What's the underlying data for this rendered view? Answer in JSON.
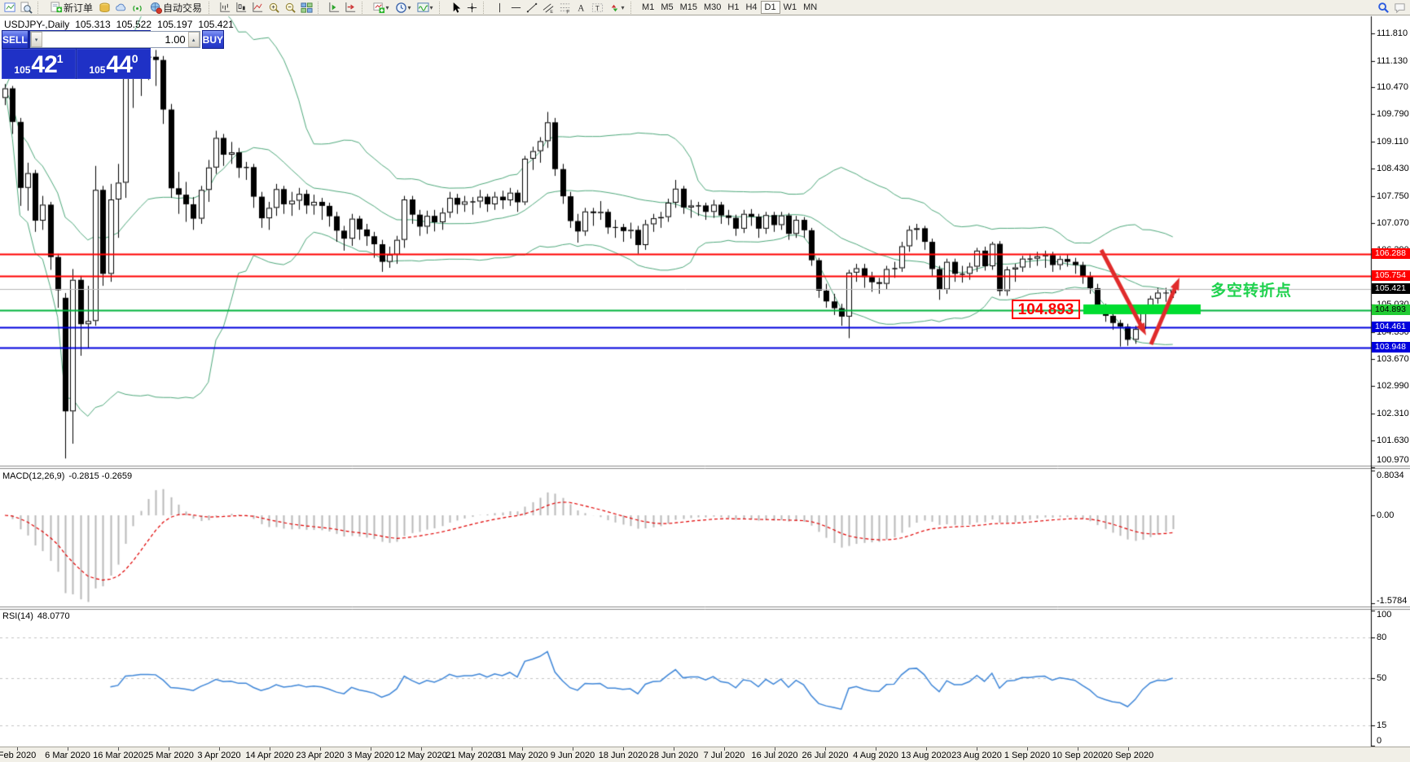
{
  "toolbar": {
    "items": [
      {
        "type": "icon",
        "name": "chart-window-icon"
      },
      {
        "type": "icon",
        "name": "market-watch-icon"
      },
      {
        "type": "sep"
      },
      {
        "type": "button",
        "name": "new-order-button",
        "icon": "new-order-icon",
        "label": "新订单"
      },
      {
        "type": "icon",
        "name": "history-center-icon"
      },
      {
        "type": "icon",
        "name": "cloud-icon"
      },
      {
        "type": "icon",
        "name": "signals-icon"
      },
      {
        "type": "button",
        "name": "auto-trading-button",
        "icon": "auto-trading-icon",
        "label": "自动交易"
      },
      {
        "type": "sep"
      },
      {
        "type": "icon",
        "name": "bar-chart-mode-icon"
      },
      {
        "type": "icon",
        "name": "candle-chart-mode-icon"
      },
      {
        "type": "icon",
        "name": "line-chart-mode-icon"
      },
      {
        "type": "icon",
        "name": "zoom-in-icon"
      },
      {
        "type": "icon",
        "name": "zoom-out-icon"
      },
      {
        "type": "icon",
        "name": "tile-windows-icon"
      },
      {
        "type": "sep"
      },
      {
        "type": "icon",
        "name": "auto-scroll-icon"
      },
      {
        "type": "icon",
        "name": "chart-shift-icon"
      },
      {
        "type": "sep"
      },
      {
        "type": "dropdown",
        "name": "new-chart-icon"
      },
      {
        "type": "dropdown",
        "name": "periods-icon"
      },
      {
        "type": "dropdown",
        "name": "indicators-icon"
      },
      {
        "type": "sep"
      },
      {
        "type": "icon",
        "name": "cursor-icon"
      },
      {
        "type": "icon",
        "name": "crosshair-icon"
      },
      {
        "type": "sep"
      },
      {
        "type": "icon",
        "name": "vertical-line-icon"
      },
      {
        "type": "icon",
        "name": "horizontal-line-icon"
      },
      {
        "type": "icon",
        "name": "trendline-icon"
      },
      {
        "type": "icon",
        "name": "equidistant-channel-icon"
      },
      {
        "type": "icon",
        "name": "fibonacci-icon"
      },
      {
        "type": "icon",
        "name": "text-icon"
      },
      {
        "type": "icon",
        "name": "text-label-icon"
      },
      {
        "type": "dropdown",
        "name": "arrows-icon"
      },
      {
        "type": "sep"
      }
    ],
    "timeframes": [
      "M1",
      "M5",
      "M15",
      "M30",
      "H1",
      "H4",
      "D1",
      "W1",
      "MN"
    ],
    "active_timeframe": "D1",
    "right_icons": [
      "search-icon",
      "chat-icon"
    ]
  },
  "symbol_header": {
    "text": "USDJPY-,Daily",
    "open": "105.313",
    "high": "105.522",
    "low": "105.197",
    "close": "105.421"
  },
  "trade_panel": {
    "sell_label": "SELL",
    "buy_label": "BUY",
    "volume": "1.00",
    "sell_price": {
      "prefix": "105",
      "big": "42",
      "sup": "1"
    },
    "buy_price": {
      "prefix": "105",
      "big": "44",
      "sup": "0"
    }
  },
  "main_axis_ticks": [
    "111.810",
    "111.130",
    "110.470",
    "109.790",
    "109.110",
    "108.430",
    "107.750",
    "107.070",
    "106.390",
    "105.710",
    "105.030",
    "104.350",
    "103.670",
    "102.990",
    "102.310",
    "101.630",
    "100.970"
  ],
  "hlines": [
    {
      "price": 106.288,
      "label": "106.288",
      "color": "#ff0000",
      "lw": 2,
      "tag_bg": "#ff0000",
      "tag_fg": "#ffffff"
    },
    {
      "price": 105.754,
      "label": "105.754",
      "color": "#ff0000",
      "lw": 2,
      "tag_bg": "#ff0000",
      "tag_fg": "#ffffff"
    },
    {
      "price": 105.421,
      "label": "105.421",
      "color": "#b8b8b8",
      "lw": 1,
      "tag_bg": "#000000",
      "tag_fg": "#ffffff"
    },
    {
      "price": 104.893,
      "label": "104.893",
      "color": "#00b33c",
      "lw": 2,
      "tag_bg": "#22cc33",
      "tag_fg": "#000000"
    },
    {
      "price": 104.461,
      "label": "104.461",
      "color": "#0000dd",
      "lw": 2,
      "tag_bg": "#0000dd",
      "tag_fg": "#ffffff"
    },
    {
      "price": 103.948,
      "label": "103.948",
      "color": "#0000dd",
      "lw": 2,
      "tag_bg": "#0000dd",
      "tag_fg": "#ffffff"
    }
  ],
  "macd_panel": {
    "label": "MACD(12,26,9)",
    "value_text": "-0.2815 -0.2659",
    "ticks": [
      {
        "v": 0.8034,
        "label": "0.8034"
      },
      {
        "v": 0,
        "label": "0.00"
      },
      {
        "v": -1.5784,
        "label": "-1.5784"
      }
    ]
  },
  "rsi_panel": {
    "label": "RSI(14)",
    "value_text": "48.0770",
    "ticks": [
      {
        "v": 100,
        "label": "100"
      },
      {
        "v": 80,
        "label": "80"
      },
      {
        "v": 50,
        "label": "50"
      },
      {
        "v": 15,
        "label": "15"
      },
      {
        "v": 0,
        "label": "0"
      }
    ],
    "levels": [
      80,
      50,
      15
    ]
  },
  "annotations": {
    "price_box": "104.893",
    "turning_text": "多空转折点",
    "colors": {
      "arrow": "#e02b2b",
      "band": "#00dd30",
      "text": "#1fd24e",
      "box": "#ff0000"
    }
  },
  "chart_data": {
    "type": "candlestick",
    "symbol": "USDJPY",
    "timeframe": "Daily",
    "title": "USDJPY-,Daily",
    "ohlc_display": [
      105.313,
      105.522,
      105.197,
      105.421
    ],
    "ylim": [
      101.02,
      112.24
    ],
    "grid": false,
    "date_labels": [
      "Feb 2020",
      "6 Mar 2020",
      "16 Mar 2020",
      "25 Mar 2020",
      "3 Apr 2020",
      "14 Apr 2020",
      "23 Apr 2020",
      "3 May 2020",
      "12 May 2020",
      "21 May 2020",
      "31 May 2020",
      "9 Jun 2020",
      "18 Jun 2020",
      "28 Jun 2020",
      "7 Jul 2020",
      "16 Jul 2020",
      "26 Jul 2020",
      "4 Aug 2020",
      "13 Aug 2020",
      "23 Aug 2020",
      "1 Sep 2020",
      "10 Sep 2020",
      "20 Sep 2020"
    ],
    "indicators": {
      "bollinger": {
        "period": 20,
        "deviation": 2,
        "color": "#4fa97c"
      },
      "macd": {
        "fast": 12,
        "slow": 26,
        "signal": 9,
        "current_main": -0.2815,
        "current_signal": -0.2659,
        "range": [
          -1.5784,
          0.8034
        ],
        "histogram_color": "#b8b8b8",
        "signal_color": "#e00000"
      },
      "rsi": {
        "period": 14,
        "current": 48.077,
        "range": [
          0,
          100
        ],
        "levels": [
          80,
          50,
          15
        ],
        "color": "#3e86d8"
      }
    },
    "levels": {
      "resistance": [
        106.288,
        105.754
      ],
      "pivot_zone": 104.893,
      "support": [
        104.461,
        103.948
      ],
      "bid": 105.421
    },
    "candles": [
      [
        110.2,
        110.55,
        110.02,
        110.44
      ],
      [
        110.44,
        110.5,
        109.3,
        109.6
      ],
      [
        109.6,
        109.7,
        107.5,
        107.95
      ],
      [
        107.95,
        108.58,
        107.38,
        108.32
      ],
      [
        108.32,
        108.4,
        106.85,
        107.13
      ],
      [
        107.13,
        107.75,
        106.9,
        107.53
      ],
      [
        107.53,
        107.6,
        105.9,
        106.22
      ],
      [
        106.22,
        106.3,
        104.95,
        105.39
      ],
      [
        105.2,
        105.32,
        101.18,
        102.36
      ],
      [
        102.36,
        105.92,
        101.55,
        105.65
      ],
      [
        105.65,
        105.75,
        103.75,
        104.54
      ],
      [
        104.54,
        105.5,
        103.95,
        104.62
      ],
      [
        104.62,
        108.5,
        104.5,
        107.9
      ],
      [
        107.9,
        108.0,
        105.5,
        105.8
      ],
      [
        105.8,
        108.05,
        105.6,
        107.66
      ],
      [
        107.66,
        108.55,
        106.7,
        108.08
      ],
      [
        108.08,
        110.95,
        107.7,
        110.71
      ],
      [
        110.71,
        111.5,
        109.95,
        110.93
      ],
      [
        110.93,
        111.59,
        110.25,
        111.22
      ],
      [
        111.22,
        111.71,
        110.65,
        111.23
      ],
      [
        111.23,
        111.4,
        110.5,
        111.15
      ],
      [
        111.15,
        111.25,
        109.55,
        109.91
      ],
      [
        109.91,
        110.05,
        107.7,
        107.94
      ],
      [
        107.94,
        108.35,
        107.3,
        107.78
      ],
      [
        107.78,
        108.1,
        107.1,
        107.54
      ],
      [
        107.54,
        107.72,
        106.9,
        107.18
      ],
      [
        107.18,
        108.0,
        107.05,
        107.9
      ],
      [
        107.9,
        108.65,
        107.6,
        108.46
      ],
      [
        108.46,
        109.38,
        108.3,
        109.2
      ],
      [
        109.2,
        109.3,
        108.5,
        108.78
      ],
      [
        108.78,
        109.1,
        108.55,
        108.84
      ],
      [
        108.84,
        108.95,
        108.2,
        108.45
      ],
      [
        108.45,
        108.6,
        108.15,
        108.47
      ],
      [
        108.47,
        108.55,
        107.45,
        107.73
      ],
      [
        107.73,
        107.85,
        106.95,
        107.19
      ],
      [
        107.19,
        107.6,
        106.9,
        107.45
      ],
      [
        107.45,
        108.05,
        107.25,
        107.92
      ],
      [
        107.92,
        108.0,
        107.3,
        107.54
      ],
      [
        107.54,
        107.85,
        107.25,
        107.63
      ],
      [
        107.63,
        107.95,
        107.4,
        107.8
      ],
      [
        107.8,
        107.9,
        107.3,
        107.51
      ],
      [
        107.51,
        107.78,
        107.28,
        107.6
      ],
      [
        107.6,
        107.7,
        107.15,
        107.5
      ],
      [
        107.5,
        107.58,
        106.98,
        107.24
      ],
      [
        107.24,
        107.35,
        106.6,
        106.88
      ],
      [
        106.88,
        107.0,
        106.38,
        106.68
      ],
      [
        106.68,
        107.3,
        106.5,
        107.18
      ],
      [
        107.18,
        107.25,
        106.65,
        106.91
      ],
      [
        106.91,
        107.05,
        106.5,
        106.74
      ],
      [
        106.74,
        106.85,
        106.2,
        106.54
      ],
      [
        106.54,
        106.65,
        105.85,
        106.1
      ],
      [
        106.1,
        106.48,
        105.95,
        106.28
      ],
      [
        106.28,
        106.75,
        106.05,
        106.65
      ],
      [
        106.65,
        107.75,
        106.45,
        107.66
      ],
      [
        107.66,
        107.75,
        107.05,
        107.28
      ],
      [
        107.28,
        107.4,
        106.75,
        106.98
      ],
      [
        106.98,
        107.38,
        106.8,
        107.25
      ],
      [
        107.25,
        107.4,
        106.86,
        107.09
      ],
      [
        107.09,
        107.45,
        106.9,
        107.33
      ],
      [
        107.33,
        107.85,
        107.2,
        107.7
      ],
      [
        107.7,
        107.8,
        107.3,
        107.53
      ],
      [
        107.53,
        107.75,
        107.35,
        107.61
      ],
      [
        107.61,
        107.72,
        107.28,
        107.61
      ],
      [
        107.61,
        107.9,
        107.45,
        107.73
      ],
      [
        107.73,
        107.8,
        107.35,
        107.54
      ],
      [
        107.54,
        107.85,
        107.4,
        107.73
      ],
      [
        107.73,
        107.88,
        107.42,
        107.64
      ],
      [
        107.64,
        107.95,
        107.5,
        107.83
      ],
      [
        107.83,
        107.9,
        107.35,
        107.59
      ],
      [
        107.59,
        108.75,
        107.52,
        108.68
      ],
      [
        108.68,
        108.98,
        108.4,
        108.87
      ],
      [
        108.87,
        109.22,
        108.58,
        109.12
      ],
      [
        109.12,
        109.85,
        108.95,
        109.59
      ],
      [
        109.59,
        109.7,
        108.25,
        108.42
      ],
      [
        108.42,
        108.55,
        107.55,
        107.74
      ],
      [
        107.74,
        107.85,
        106.95,
        107.12
      ],
      [
        107.12,
        107.3,
        106.58,
        106.86
      ],
      [
        106.86,
        107.45,
        106.75,
        107.36
      ],
      [
        107.36,
        107.45,
        107.0,
        107.32
      ],
      [
        107.32,
        107.62,
        107.15,
        107.35
      ],
      [
        107.35,
        107.42,
        106.8,
        106.96
      ],
      [
        106.96,
        107.15,
        106.7,
        106.97
      ],
      [
        106.97,
        107.05,
        106.6,
        106.87
      ],
      [
        106.87,
        107.08,
        106.68,
        106.9
      ],
      [
        106.9,
        107.0,
        106.3,
        106.52
      ],
      [
        106.52,
        107.15,
        106.4,
        107.04
      ],
      [
        107.04,
        107.3,
        106.85,
        107.19
      ],
      [
        107.19,
        107.35,
        106.95,
        107.22
      ],
      [
        107.22,
        107.68,
        107.1,
        107.58
      ],
      [
        107.58,
        108.15,
        107.45,
        107.93
      ],
      [
        107.93,
        108.0,
        107.3,
        107.46
      ],
      [
        107.46,
        107.65,
        107.2,
        107.51
      ],
      [
        107.51,
        107.6,
        107.25,
        107.51
      ],
      [
        107.51,
        107.58,
        107.15,
        107.35
      ],
      [
        107.35,
        107.65,
        107.2,
        107.53
      ],
      [
        107.53,
        107.6,
        107.05,
        107.26
      ],
      [
        107.26,
        107.4,
        107.02,
        107.2
      ],
      [
        107.2,
        107.28,
        106.75,
        106.93
      ],
      [
        106.93,
        107.4,
        106.82,
        107.3
      ],
      [
        107.3,
        107.42,
        107.0,
        107.23
      ],
      [
        107.23,
        107.3,
        106.7,
        106.93
      ],
      [
        106.93,
        107.35,
        106.8,
        107.27
      ],
      [
        107.27,
        107.35,
        106.85,
        107.02
      ],
      [
        107.02,
        107.35,
        106.9,
        107.26
      ],
      [
        107.26,
        107.32,
        106.65,
        106.8
      ],
      [
        106.8,
        107.25,
        106.7,
        107.15
      ],
      [
        107.15,
        107.22,
        106.7,
        106.89
      ],
      [
        106.89,
        106.95,
        106.0,
        106.14
      ],
      [
        106.14,
        106.2,
        105.2,
        105.38
      ],
      [
        105.38,
        105.55,
        104.95,
        105.11
      ],
      [
        105.11,
        105.3,
        104.77,
        104.94
      ],
      [
        104.94,
        105.05,
        104.5,
        104.73
      ],
      [
        104.73,
        105.9,
        104.19,
        105.83
      ],
      [
        105.83,
        106.05,
        105.6,
        105.94
      ],
      [
        105.94,
        106.05,
        105.45,
        105.72
      ],
      [
        105.72,
        105.85,
        105.35,
        105.59
      ],
      [
        105.59,
        105.7,
        105.3,
        105.55
      ],
      [
        105.55,
        106.0,
        105.4,
        105.92
      ],
      [
        105.92,
        106.1,
        105.7,
        105.94
      ],
      [
        105.94,
        106.6,
        105.85,
        106.49
      ],
      [
        106.49,
        107.0,
        106.35,
        106.9
      ],
      [
        106.9,
        107.05,
        106.65,
        106.94
      ],
      [
        106.94,
        107.0,
        106.4,
        106.6
      ],
      [
        106.6,
        106.68,
        105.75,
        105.92
      ],
      [
        105.92,
        106.0,
        105.15,
        105.41
      ],
      [
        105.41,
        106.18,
        105.3,
        106.1
      ],
      [
        106.1,
        106.18,
        105.6,
        105.8
      ],
      [
        105.8,
        106.0,
        105.58,
        105.8
      ],
      [
        105.8,
        106.08,
        105.65,
        105.98
      ],
      [
        105.98,
        106.45,
        105.85,
        106.38
      ],
      [
        106.38,
        106.48,
        105.88,
        105.99
      ],
      [
        105.99,
        106.6,
        105.9,
        106.55
      ],
      [
        106.55,
        106.62,
        105.25,
        105.37
      ],
      [
        105.37,
        105.98,
        105.25,
        105.91
      ],
      [
        105.91,
        106.05,
        105.6,
        105.96
      ],
      [
        105.96,
        106.25,
        105.85,
        106.18
      ],
      [
        106.18,
        106.3,
        105.95,
        106.18
      ],
      [
        106.18,
        106.35,
        106.0,
        106.24
      ],
      [
        106.24,
        106.38,
        105.95,
        106.27
      ],
      [
        106.27,
        106.35,
        105.85,
        106.02
      ],
      [
        106.02,
        106.25,
        105.9,
        106.17
      ],
      [
        106.17,
        106.28,
        105.98,
        106.1
      ],
      [
        106.1,
        106.2,
        105.8,
        106.02
      ],
      [
        106.02,
        106.1,
        105.55,
        105.73
      ],
      [
        105.73,
        105.85,
        105.3,
        105.44
      ],
      [
        105.44,
        105.55,
        104.85,
        104.96
      ],
      [
        104.96,
        105.05,
        104.6,
        104.75
      ],
      [
        104.75,
        104.85,
        104.4,
        104.57
      ],
      [
        104.57,
        104.65,
        103.98,
        104.48
      ],
      [
        104.48,
        104.55,
        104.0,
        104.15
      ],
      [
        104.15,
        104.5,
        104.05,
        104.42
      ],
      [
        104.42,
        104.95,
        104.35,
        104.86
      ],
      [
        104.86,
        105.25,
        104.8,
        105.18
      ],
      [
        105.18,
        105.45,
        105.05,
        105.33
      ],
      [
        105.33,
        105.45,
        105.1,
        105.31
      ],
      [
        105.313,
        105.522,
        105.197,
        105.421
      ]
    ]
  }
}
